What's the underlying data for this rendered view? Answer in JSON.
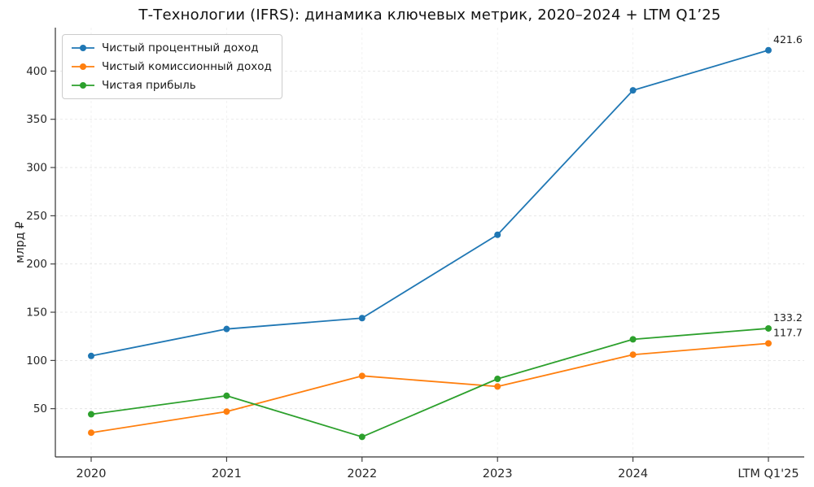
{
  "chart_data": {
    "type": "line",
    "title": "Т-Технологии (IFRS): динамика ключевых метрик, 2020–2024 + LTM Q1’25",
    "ylabel": "млрд ₽",
    "categories": [
      "2020",
      "2021",
      "2022",
      "2023",
      "2024",
      "LTM Q1'25"
    ],
    "yticks": [
      50,
      100,
      150,
      200,
      250,
      300,
      350,
      400
    ],
    "ylim": [
      0,
      445
    ],
    "grid": true,
    "legend_position": "upper left",
    "series": [
      {
        "name": "Чистый процентный доход",
        "color": "#1f77b4",
        "values": [
          104.7,
          132.6,
          143.9,
          230.3,
          380.0,
          421.6
        ],
        "end_label": "421.6"
      },
      {
        "name": "Чистый комиссионный доход",
        "color": "#ff7f0e",
        "values": [
          25.1,
          47.0,
          84.0,
          73.0,
          106.0,
          117.7
        ],
        "end_label": "117.7"
      },
      {
        "name": "Чистая прибыль",
        "color": "#2ca02c",
        "values": [
          44.2,
          63.4,
          20.8,
          80.9,
          121.9,
          133.2
        ],
        "end_label": "133.2"
      }
    ]
  }
}
